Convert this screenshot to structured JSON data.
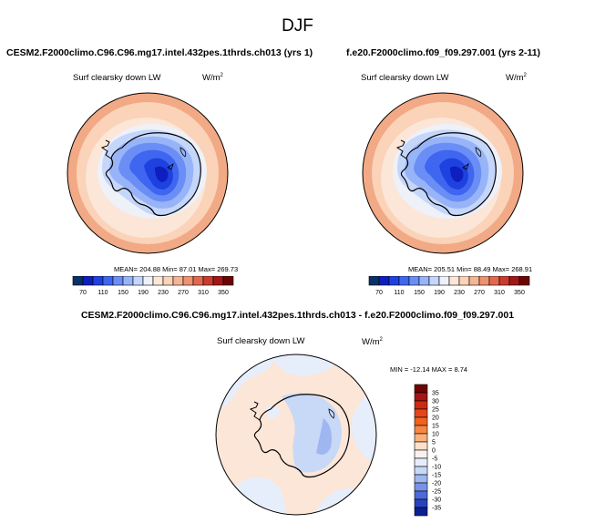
{
  "page_title": "DJF",
  "panels": [
    {
      "heading": "CESM2.F2000climo.C96.C96.mg17.intel.432pes.1thrds.ch013 (yrs 1)",
      "var_label": "Surf clearsky down LW",
      "units": "W/m",
      "units_exp": "2",
      "stats": "MEAN= 204.88  Min=  87.01  Max= 269.73"
    },
    {
      "heading": "f.e20.F2000climo.f09_f09.297.001 (yrs 2-11)",
      "var_label": "Surf clearsky down LW",
      "units": "W/m",
      "units_exp": "2",
      "stats": "MEAN= 205.51  Min=  88.49  Max= 268.91"
    }
  ],
  "diff": {
    "heading": "CESM2.F2000climo.C96.C96.mg17.intel.432pes.1thrds.ch013 - f.e20.F2000climo.f09_f09.297.001",
    "var_label": "Surf clearsky down LW",
    "units": "W/m",
    "units_exp": "2",
    "stats": "MIN = -12.14 MAX =  8.74"
  },
  "chart_data": [
    {
      "type": "heatmap",
      "title": "Surf clearsky down LW",
      "model": "CESM2.F2000climo.C96.C96.mg17.intel.432pes.1thrds.ch013 (yrs 1)",
      "projection": "south-polar stereographic",
      "units": "W/m2",
      "mean": 204.88,
      "min": 87.01,
      "max": 269.73,
      "colorbar_ticks": [
        70,
        110,
        150,
        190,
        230,
        270,
        310,
        350
      ],
      "colorbar_levels": [
        50,
        70,
        90,
        110,
        130,
        150,
        170,
        190,
        210,
        230,
        250,
        270,
        290,
        310,
        330,
        350,
        370
      ]
    },
    {
      "type": "heatmap",
      "title": "Surf clearsky down LW",
      "model": "f.e20.F2000climo.f09_f09.297.001 (yrs 2-11)",
      "projection": "south-polar stereographic",
      "units": "W/m2",
      "mean": 205.51,
      "min": 88.49,
      "max": 268.91,
      "colorbar_ticks": [
        70,
        110,
        150,
        190,
        230,
        270,
        310,
        350
      ],
      "colorbar_levels": [
        50,
        70,
        90,
        110,
        130,
        150,
        170,
        190,
        210,
        230,
        250,
        270,
        290,
        310,
        330,
        350,
        370
      ]
    },
    {
      "type": "heatmap",
      "title": "Surf clearsky down LW (difference)",
      "projection": "south-polar stereographic",
      "units": "W/m2",
      "min": -12.14,
      "max": 8.74,
      "colorbar_ticks": [
        35,
        30,
        25,
        20,
        15,
        10,
        5,
        0,
        -5,
        -10,
        -15,
        -20,
        -25,
        -30,
        -35
      ]
    }
  ],
  "colors": {
    "main_scale": [
      "#08306b",
      "#0d1fbf",
      "#1f41e0",
      "#3f66f0",
      "#6a8ef5",
      "#98b4f8",
      "#c5d6fb",
      "#eef1f8",
      "#fbe6d8",
      "#fad3b8",
      "#f5b493",
      "#ee9270",
      "#e2694f",
      "#c93d2f",
      "#a11818",
      "#6e0505"
    ],
    "diff_scale": [
      "#6e0505",
      "#a61515",
      "#cc2a10",
      "#e2461a",
      "#f0621f",
      "#f78643",
      "#fbb07c",
      "#fde0c8",
      "#f9f2ec",
      "#e7eefb",
      "#c8d8f7",
      "#9eb7f1",
      "#7693e8",
      "#4c6ad8",
      "#2744bf",
      "#0a1f94"
    ],
    "land_fill": "#ffffff",
    "coast": "#000000"
  }
}
